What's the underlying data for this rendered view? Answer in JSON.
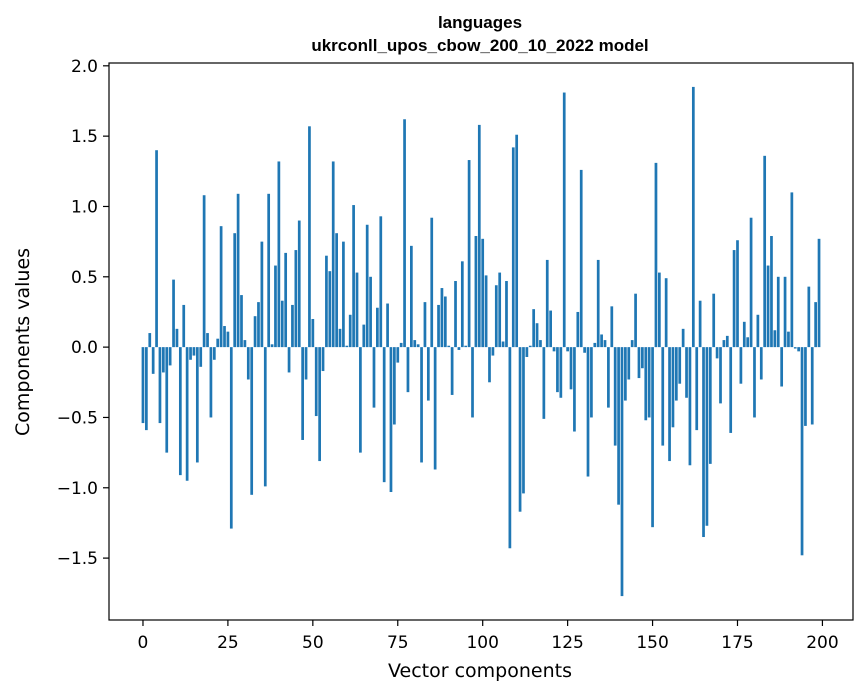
{
  "chart_data": {
    "type": "bar",
    "title": "languages",
    "subtitle": "ukrconll_upos_cbow_200_10_2022 model",
    "xlabel": "Vector components",
    "ylabel": "Components values",
    "xlim": [
      -10,
      209
    ],
    "ylim": [
      -1.94,
      2.02
    ],
    "xticks": [
      0,
      25,
      50,
      75,
      100,
      125,
      150,
      175,
      200
    ],
    "xtick_labels": [
      "0",
      "25",
      "50",
      "75",
      "100",
      "125",
      "150",
      "175",
      "200"
    ],
    "yticks": [
      -1.5,
      -1.0,
      -0.5,
      0.0,
      0.5,
      1.0,
      1.5,
      2.0
    ],
    "ytick_labels": [
      "−1.5",
      "−1.0",
      "−0.5",
      "0.0",
      "0.5",
      "1.0",
      "1.5",
      "2.0"
    ],
    "bar_color": "#1f77b4",
    "values": [
      -0.54,
      -0.59,
      0.1,
      -0.19,
      1.4,
      -0.54,
      -0.18,
      -0.75,
      -0.13,
      0.48,
      0.13,
      -0.91,
      0.3,
      -0.95,
      -0.09,
      -0.06,
      -0.82,
      -0.14,
      1.08,
      0.1,
      -0.5,
      -0.09,
      0.06,
      0.86,
      0.15,
      0.11,
      -1.29,
      0.81,
      1.09,
      0.37,
      0.05,
      -0.23,
      -1.05,
      0.22,
      0.32,
      0.75,
      -0.99,
      1.09,
      0.02,
      0.58,
      1.32,
      0.33,
      0.67,
      -0.18,
      0.3,
      0.69,
      0.9,
      -0.66,
      -0.23,
      1.57,
      0.2,
      -0.49,
      -0.81,
      -0.17,
      0.65,
      0.54,
      1.32,
      0.81,
      0.13,
      0.75,
      0.01,
      0.23,
      1.01,
      0.53,
      -0.75,
      0.16,
      0.87,
      0.5,
      -0.43,
      0.28,
      0.93,
      -0.96,
      0.31,
      -1.03,
      -0.55,
      -0.11,
      0.03,
      1.62,
      -0.32,
      0.72,
      0.05,
      0.02,
      -0.82,
      0.32,
      -0.38,
      0.92,
      -0.87,
      0.3,
      0.42,
      0.36,
      0.01,
      -0.34,
      0.47,
      -0.02,
      0.61,
      0.01,
      1.33,
      -0.5,
      0.79,
      1.58,
      0.77,
      0.51,
      -0.25,
      -0.06,
      0.44,
      0.53,
      0.04,
      0.47,
      -1.43,
      1.42,
      1.51,
      -1.17,
      -1.04,
      -0.07,
      0.01,
      0.27,
      0.17,
      0.05,
      -0.51,
      0.62,
      0.26,
      -0.03,
      -0.32,
      -0.36,
      1.81,
      -0.03,
      -0.3,
      -0.6,
      0.25,
      1.26,
      -0.04,
      -0.92,
      -0.5,
      0.03,
      0.62,
      0.09,
      0.05,
      -0.43,
      0.29,
      -0.7,
      -1.12,
      -1.77,
      -0.38,
      -0.23,
      0.05,
      0.38,
      -0.22,
      -0.15,
      -0.52,
      -0.5,
      -1.28,
      1.31,
      0.53,
      -0.7,
      0.49,
      -0.81,
      -0.57,
      -0.38,
      -0.26,
      0.13,
      -0.36,
      -0.84,
      1.85,
      -0.59,
      0.33,
      -1.35,
      -1.27,
      -0.83,
      0.38,
      -0.08,
      -0.4,
      0.05,
      0.08,
      -0.61,
      0.69,
      0.76,
      -0.26,
      0.18,
      0.07,
      0.92,
      -0.5,
      0.23,
      -0.23,
      1.36,
      0.58,
      0.79,
      0.12,
      0.5,
      -0.28,
      0.5,
      0.11,
      1.1,
      -0.01,
      -0.03,
      -1.48,
      -0.56,
      0.43,
      -0.55,
      0.32,
      0.77
    ]
  }
}
